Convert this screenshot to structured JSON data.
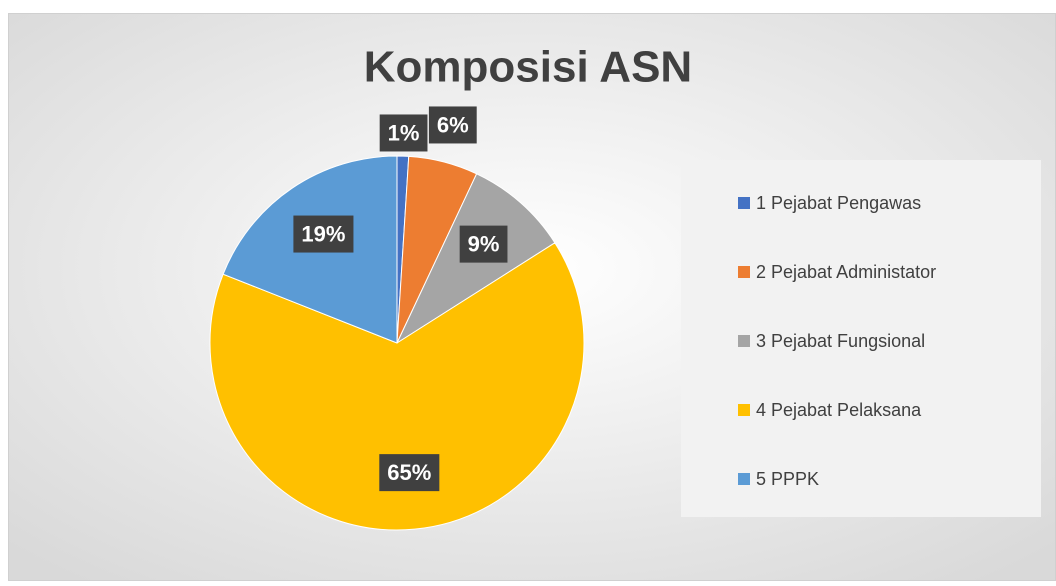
{
  "chart_data": {
    "type": "pie",
    "title": "Komposisi ASN",
    "categories": [
      "1 Pejabat Pengawas",
      "2 Pejabat Administator",
      "3 Pejabat Fungsional",
      "4 Pejabat Pelaksana",
      "5 PPPK"
    ],
    "values": [
      1,
      6,
      9,
      65,
      19
    ],
    "value_labels": [
      "1%",
      "6%",
      "9%",
      "65%",
      "19%"
    ],
    "colors": [
      "#4472c4",
      "#ed7d31",
      "#a5a5a5",
      "#ffc000",
      "#5b9bd5"
    ],
    "legend": "right"
  }
}
